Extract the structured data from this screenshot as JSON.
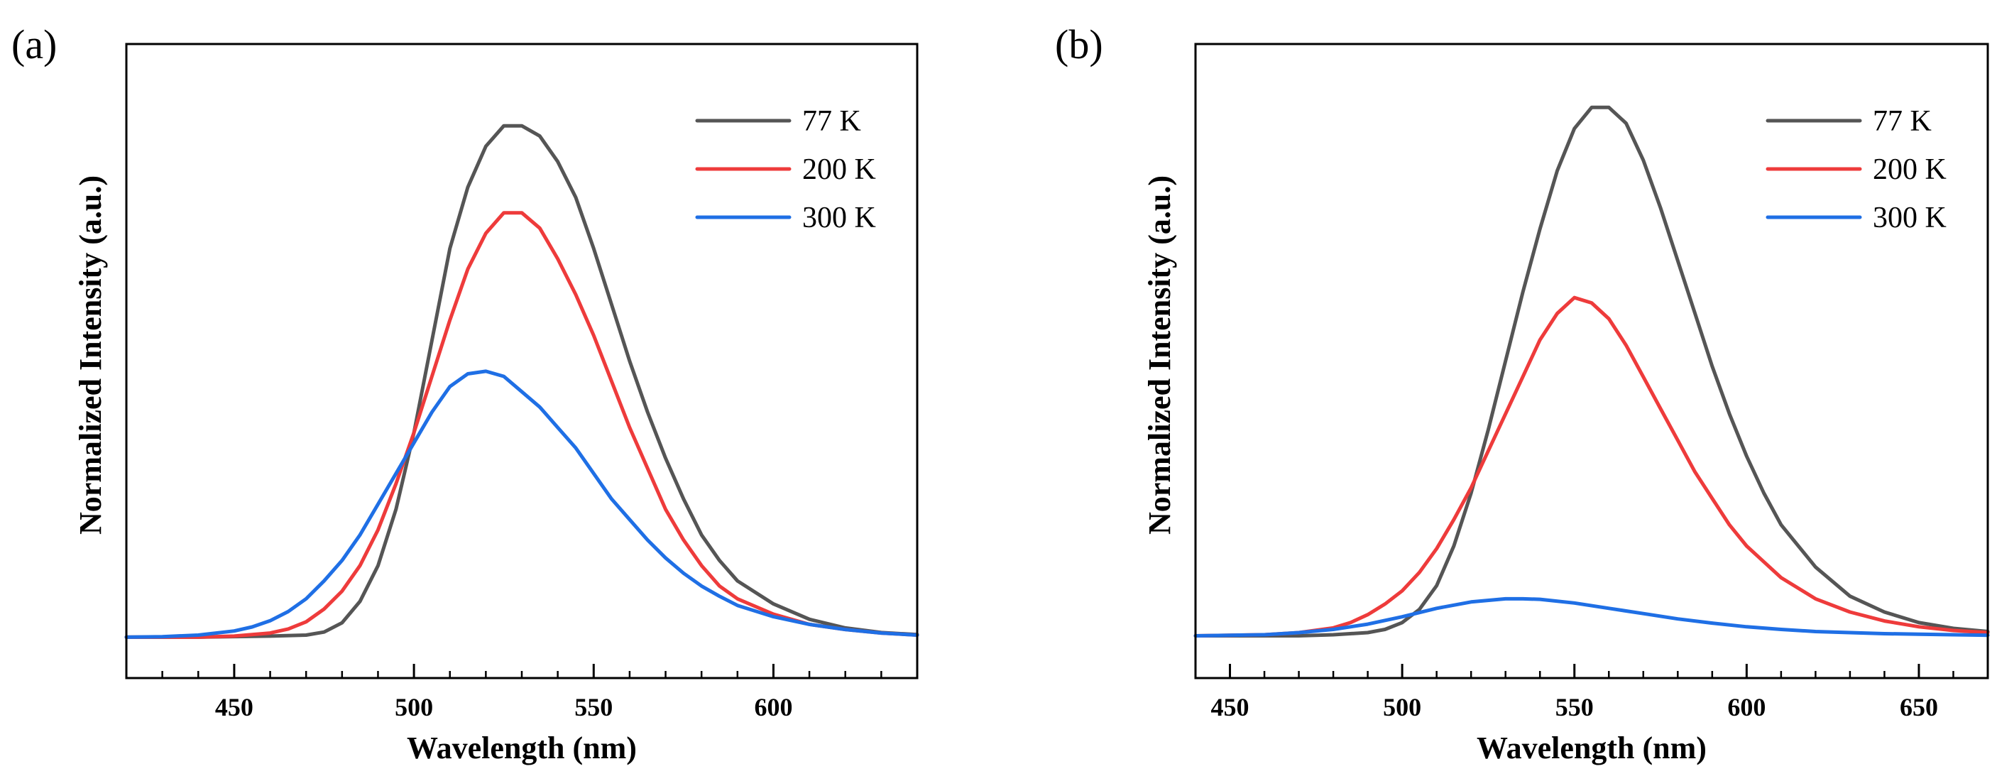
{
  "chart_data": [
    {
      "type": "line",
      "panel_label": "(a)",
      "xlabel": "Wavelength (nm)",
      "ylabel": "Normalized Intensity (a.u.)",
      "xlim": [
        420,
        640
      ],
      "ylim": [
        -0.08,
        1.16
      ],
      "x_ticks": [
        450,
        500,
        550,
        600
      ],
      "x_minor_step": 10,
      "show_y_ticks": false,
      "legend_position": "top-right",
      "series": [
        {
          "name": "77 K",
          "color": "#555555",
          "x": [
            420,
            440,
            460,
            470,
            475,
            480,
            485,
            490,
            495,
            500,
            505,
            510,
            515,
            520,
            525,
            530,
            535,
            540,
            545,
            550,
            555,
            560,
            565,
            570,
            575,
            580,
            585,
            590,
            600,
            610,
            620,
            630,
            640
          ],
          "y": [
            0,
            0,
            0.002,
            0.004,
            0.01,
            0.028,
            0.07,
            0.14,
            0.25,
            0.4,
            0.58,
            0.76,
            0.88,
            0.96,
            1.0,
            1.0,
            0.98,
            0.93,
            0.86,
            0.76,
            0.65,
            0.54,
            0.44,
            0.35,
            0.27,
            0.2,
            0.15,
            0.11,
            0.065,
            0.035,
            0.018,
            0.009,
            0.005
          ]
        },
        {
          "name": "200 K",
          "color": "#ee3b3b",
          "x": [
            420,
            440,
            450,
            460,
            465,
            470,
            475,
            480,
            485,
            490,
            495,
            500,
            505,
            510,
            515,
            520,
            525,
            530,
            535,
            540,
            545,
            550,
            555,
            560,
            565,
            570,
            575,
            580,
            585,
            590,
            600,
            610,
            620,
            630,
            640
          ],
          "y": [
            0,
            0,
            0.002,
            0.008,
            0.016,
            0.03,
            0.055,
            0.09,
            0.14,
            0.21,
            0.3,
            0.4,
            0.51,
            0.62,
            0.72,
            0.79,
            0.83,
            0.83,
            0.8,
            0.74,
            0.67,
            0.59,
            0.5,
            0.41,
            0.33,
            0.25,
            0.19,
            0.14,
            0.1,
            0.075,
            0.045,
            0.025,
            0.015,
            0.008,
            0.004
          ]
        },
        {
          "name": "300 K",
          "color": "#1f6fe5",
          "x": [
            420,
            430,
            440,
            450,
            455,
            460,
            465,
            470,
            475,
            480,
            485,
            490,
            495,
            500,
            505,
            510,
            515,
            520,
            525,
            530,
            535,
            540,
            545,
            550,
            555,
            560,
            565,
            570,
            575,
            580,
            585,
            590,
            600,
            610,
            620,
            630,
            640
          ],
          "y": [
            0,
            0.001,
            0.004,
            0.012,
            0.02,
            0.032,
            0.05,
            0.075,
            0.11,
            0.15,
            0.2,
            0.26,
            0.32,
            0.38,
            0.44,
            0.49,
            0.515,
            0.52,
            0.51,
            0.48,
            0.45,
            0.41,
            0.37,
            0.32,
            0.27,
            0.23,
            0.19,
            0.155,
            0.125,
            0.1,
            0.08,
            0.062,
            0.04,
            0.025,
            0.015,
            0.008,
            0.004
          ]
        }
      ]
    },
    {
      "type": "line",
      "panel_label": "(b)",
      "xlabel": "Wavelength (nm)",
      "ylabel": "Normalized Intensity (a.u.)",
      "xlim": [
        440,
        670
      ],
      "ylim": [
        -0.08,
        1.12
      ],
      "x_ticks": [
        450,
        500,
        550,
        600,
        650
      ],
      "x_minor_step": 10,
      "show_y_ticks": false,
      "legend_position": "top-right",
      "series": [
        {
          "name": "77 K",
          "color": "#555555",
          "x": [
            440,
            470,
            480,
            490,
            495,
            500,
            505,
            510,
            515,
            520,
            525,
            530,
            535,
            540,
            545,
            550,
            555,
            560,
            565,
            570,
            575,
            580,
            585,
            590,
            595,
            600,
            605,
            610,
            620,
            630,
            640,
            650,
            660,
            670
          ],
          "y": [
            0,
            0,
            0.002,
            0.006,
            0.012,
            0.025,
            0.05,
            0.095,
            0.17,
            0.27,
            0.39,
            0.52,
            0.65,
            0.77,
            0.88,
            0.96,
            1.0,
            1.0,
            0.97,
            0.9,
            0.81,
            0.71,
            0.61,
            0.51,
            0.42,
            0.34,
            0.27,
            0.21,
            0.13,
            0.075,
            0.045,
            0.025,
            0.014,
            0.008
          ]
        },
        {
          "name": "200 K",
          "color": "#ee3b3b",
          "x": [
            440,
            460,
            470,
            480,
            485,
            490,
            495,
            500,
            505,
            510,
            515,
            520,
            525,
            530,
            535,
            540,
            545,
            550,
            555,
            560,
            565,
            570,
            575,
            580,
            585,
            590,
            595,
            600,
            605,
            610,
            620,
            630,
            640,
            650,
            660,
            670
          ],
          "y": [
            0,
            0.002,
            0.006,
            0.015,
            0.025,
            0.04,
            0.06,
            0.085,
            0.12,
            0.165,
            0.22,
            0.28,
            0.35,
            0.42,
            0.49,
            0.56,
            0.61,
            0.64,
            0.63,
            0.6,
            0.55,
            0.49,
            0.43,
            0.37,
            0.31,
            0.26,
            0.21,
            0.17,
            0.14,
            0.11,
            0.07,
            0.045,
            0.028,
            0.017,
            0.01,
            0.006
          ]
        },
        {
          "name": "300 K",
          "color": "#1f6fe5",
          "x": [
            440,
            460,
            470,
            480,
            490,
            500,
            510,
            520,
            530,
            535,
            540,
            550,
            560,
            570,
            580,
            590,
            600,
            610,
            620,
            630,
            640,
            650,
            660,
            670
          ],
          "y": [
            0,
            0.002,
            0.006,
            0.012,
            0.022,
            0.036,
            0.052,
            0.064,
            0.07,
            0.07,
            0.069,
            0.062,
            0.052,
            0.042,
            0.032,
            0.024,
            0.017,
            0.012,
            0.008,
            0.006,
            0.004,
            0.003,
            0.002,
            0.001
          ]
        }
      ]
    }
  ]
}
